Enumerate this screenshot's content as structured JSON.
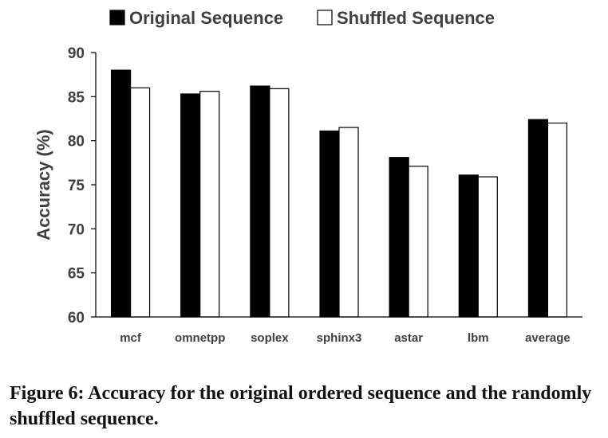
{
  "caption": "Figure 6: Accuracy for the original ordered sequence and the randomly shuffled sequence.",
  "chart_data": {
    "type": "bar",
    "ylabel": "Accuracy (%)",
    "xlabel": "",
    "ylim": [
      60,
      90
    ],
    "yticks": [
      60,
      65,
      70,
      75,
      80,
      85,
      90
    ],
    "categories": [
      "mcf",
      "omnetpp",
      "soplex",
      "sphinx3",
      "astar",
      "lbm",
      "average"
    ],
    "legend_position": "top",
    "grid": false,
    "series": [
      {
        "name": "Original Sequence",
        "color": "#000000",
        "values": [
          88.0,
          85.3,
          86.2,
          81.1,
          78.1,
          76.1,
          82.4
        ]
      },
      {
        "name": "Shuffled Sequence",
        "color": "#ffffff",
        "values": [
          86.0,
          85.6,
          85.9,
          81.5,
          77.1,
          75.9,
          82.0
        ]
      }
    ]
  }
}
